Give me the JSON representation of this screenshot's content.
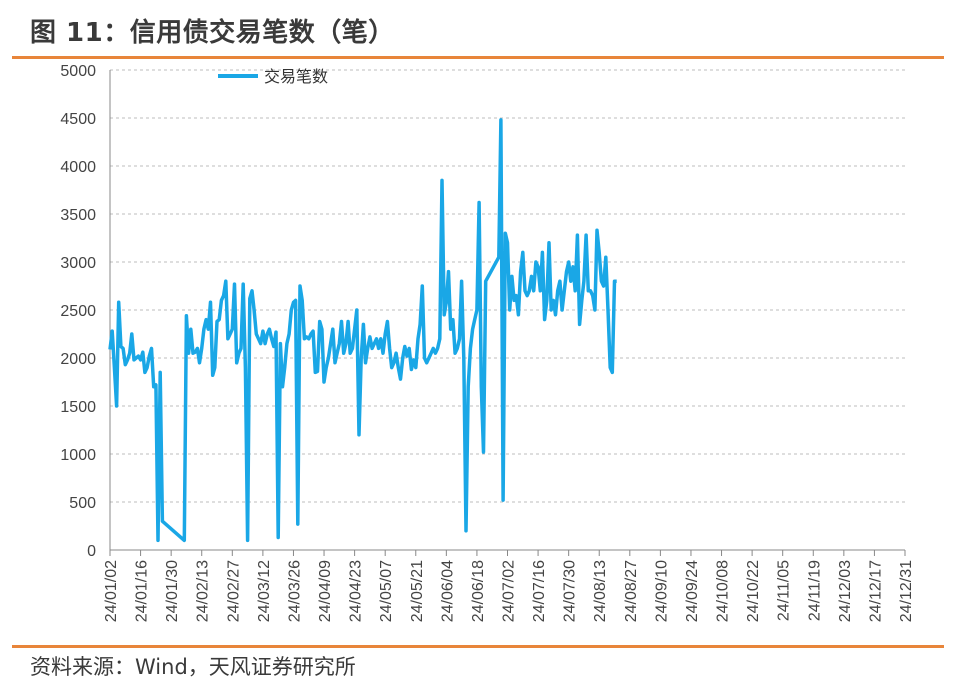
{
  "figure": {
    "title": "图 11：信用债交易笔数（笔）",
    "source": "资料来源：Wind，天风证券研究所"
  },
  "colors": {
    "series": "#1aa7e6",
    "accent_rule": "#e8853a",
    "grid": "#bdbdbd"
  },
  "chart_data": {
    "type": "line",
    "title": "",
    "xlabel": "",
    "ylabel": "",
    "ylim": [
      0,
      5000
    ],
    "yticks": [
      0,
      500,
      1000,
      1500,
      2000,
      2500,
      3000,
      3500,
      4000,
      4500,
      5000
    ],
    "grid": "horizontal dashed",
    "legend": "top-left",
    "categories": [
      "24/01/02",
      "24/01/16",
      "24/01/30",
      "24/02/13",
      "24/02/27",
      "24/03/12",
      "24/03/26",
      "24/04/09",
      "24/04/23",
      "24/05/07",
      "24/05/21",
      "24/06/04",
      "24/06/18",
      "24/07/02",
      "24/07/16",
      "24/07/30",
      "24/08/13",
      "24/08/27",
      "24/09/10",
      "24/09/24",
      "24/10/08",
      "24/10/22",
      "24/11/05",
      "24/11/19",
      "24/12/03",
      "24/12/17",
      "24/12/31"
    ],
    "x_start": "24/01/02",
    "x_end": "24/12/31",
    "series": [
      {
        "name": "交易笔数",
        "points": [
          [
            "24/01/02",
            2090
          ],
          [
            "24/01/03",
            2280
          ],
          [
            "24/01/04",
            1900
          ],
          [
            "24/01/05",
            1500
          ],
          [
            "24/01/06",
            2580
          ],
          [
            "24/01/07",
            2120
          ],
          [
            "24/01/08",
            2100
          ],
          [
            "24/01/09",
            1930
          ],
          [
            "24/01/10",
            1980
          ],
          [
            "24/01/11",
            2050
          ],
          [
            "24/01/12",
            2250
          ],
          [
            "24/01/13",
            1980
          ],
          [
            "24/01/14",
            2000
          ],
          [
            "24/01/15",
            2020
          ],
          [
            "24/01/16",
            1980
          ],
          [
            "24/01/17",
            2060
          ],
          [
            "24/01/18",
            1850
          ],
          [
            "24/01/19",
            1900
          ],
          [
            "24/01/20",
            2020
          ],
          [
            "24/01/21",
            2100
          ],
          [
            "24/01/22",
            1700
          ],
          [
            "24/01/23",
            1720
          ],
          [
            "24/01/24",
            100
          ],
          [
            "24/01/25",
            1850
          ],
          [
            "24/01/26",
            300
          ],
          [
            "24/02/05",
            100
          ],
          [
            "24/02/06",
            2440
          ],
          [
            "24/02/07",
            2050
          ],
          [
            "24/02/08",
            2300
          ],
          [
            "24/02/09",
            2050
          ],
          [
            "24/02/10",
            2060
          ],
          [
            "24/02/11",
            2100
          ],
          [
            "24/02/12",
            1950
          ],
          [
            "24/02/13",
            2100
          ],
          [
            "24/02/14",
            2300
          ],
          [
            "24/02/15",
            2400
          ],
          [
            "24/02/16",
            2300
          ],
          [
            "24/02/17",
            2580
          ],
          [
            "24/02/18",
            1820
          ],
          [
            "24/02/19",
            1900
          ],
          [
            "24/02/20",
            2380
          ],
          [
            "24/02/21",
            2400
          ],
          [
            "24/02/22",
            2600
          ],
          [
            "24/02/23",
            2650
          ],
          [
            "24/02/24",
            2800
          ],
          [
            "24/02/25",
            2200
          ],
          [
            "24/02/26",
            2250
          ],
          [
            "24/02/27",
            2300
          ],
          [
            "24/02/28",
            2770
          ],
          [
            "24/02/29",
            1950
          ],
          [
            "24/03/01",
            2050
          ],
          [
            "24/03/02",
            2100
          ],
          [
            "24/03/03",
            2770
          ],
          [
            "24/03/04",
            1900
          ],
          [
            "24/03/05",
            100
          ],
          [
            "24/03/06",
            2620
          ],
          [
            "24/03/07",
            2700
          ],
          [
            "24/03/08",
            2500
          ],
          [
            "24/03/09",
            2250
          ],
          [
            "24/03/10",
            2200
          ],
          [
            "24/03/11",
            2150
          ],
          [
            "24/03/12",
            2280
          ],
          [
            "24/03/13",
            2150
          ],
          [
            "24/03/14",
            2250
          ],
          [
            "24/03/15",
            2300
          ],
          [
            "24/03/16",
            2200
          ],
          [
            "24/03/17",
            2120
          ],
          [
            "24/03/18",
            2270
          ],
          [
            "24/03/19",
            130
          ],
          [
            "24/03/20",
            2150
          ],
          [
            "24/03/21",
            1700
          ],
          [
            "24/03/22",
            1900
          ],
          [
            "24/03/23",
            2150
          ],
          [
            "24/03/24",
            2250
          ],
          [
            "24/03/25",
            2500
          ],
          [
            "24/03/26",
            2580
          ],
          [
            "24/03/27",
            2600
          ],
          [
            "24/03/28",
            270
          ],
          [
            "24/03/29",
            2750
          ],
          [
            "24/03/30",
            2600
          ],
          [
            "24/03/31",
            2200
          ],
          [
            "24/04/01",
            2220
          ],
          [
            "24/04/02",
            2200
          ],
          [
            "24/04/03",
            2250
          ],
          [
            "24/04/04",
            2280
          ],
          [
            "24/04/05",
            1850
          ],
          [
            "24/04/06",
            1860
          ],
          [
            "24/04/07",
            2380
          ],
          [
            "24/04/08",
            2300
          ],
          [
            "24/04/09",
            1750
          ],
          [
            "24/04/10",
            1900
          ],
          [
            "24/04/11",
            2000
          ],
          [
            "24/04/12",
            2150
          ],
          [
            "24/04/13",
            2300
          ],
          [
            "24/04/14",
            1950
          ],
          [
            "24/04/15",
            2050
          ],
          [
            "24/04/16",
            2150
          ],
          [
            "24/04/17",
            2380
          ],
          [
            "24/04/18",
            2050
          ],
          [
            "24/04/19",
            2150
          ],
          [
            "24/04/20",
            2380
          ],
          [
            "24/04/21",
            2050
          ],
          [
            "24/04/22",
            2100
          ],
          [
            "24/04/23",
            2300
          ],
          [
            "24/04/24",
            2500
          ],
          [
            "24/04/25",
            1200
          ],
          [
            "24/04/26",
            2000
          ],
          [
            "24/04/27",
            2350
          ],
          [
            "24/04/28",
            1950
          ],
          [
            "24/04/29",
            2100
          ],
          [
            "24/04/30",
            2220
          ],
          [
            "24/05/01",
            2100
          ],
          [
            "24/05/02",
            2150
          ],
          [
            "24/05/03",
            2200
          ],
          [
            "24/05/04",
            2100
          ],
          [
            "24/05/05",
            2200
          ],
          [
            "24/05/06",
            2050
          ],
          [
            "24/05/07",
            2250
          ],
          [
            "24/05/08",
            2380
          ],
          [
            "24/05/09",
            2100
          ],
          [
            "24/05/10",
            1900
          ],
          [
            "24/05/11",
            1950
          ],
          [
            "24/05/12",
            2050
          ],
          [
            "24/05/13",
            1900
          ],
          [
            "24/05/14",
            1780
          ],
          [
            "24/05/15",
            2000
          ],
          [
            "24/05/16",
            2120
          ],
          [
            "24/05/17",
            2020
          ],
          [
            "24/05/18",
            2100
          ],
          [
            "24/05/19",
            1880
          ],
          [
            "24/05/20",
            1980
          ],
          [
            "24/05/21",
            1900
          ],
          [
            "24/05/22",
            2200
          ],
          [
            "24/05/23",
            2350
          ],
          [
            "24/05/24",
            2750
          ],
          [
            "24/05/25",
            2000
          ],
          [
            "24/05/26",
            1950
          ],
          [
            "24/05/27",
            2000
          ],
          [
            "24/05/28",
            2050
          ],
          [
            "24/05/29",
            2100
          ],
          [
            "24/05/30",
            2050
          ],
          [
            "24/05/31",
            2100
          ],
          [
            "24/06/01",
            2200
          ],
          [
            "24/06/02",
            3850
          ],
          [
            "24/06/03",
            2450
          ],
          [
            "24/06/04",
            2580
          ],
          [
            "24/06/05",
            2900
          ],
          [
            "24/06/06",
            2300
          ],
          [
            "24/06/07",
            2400
          ],
          [
            "24/06/08",
            2050
          ],
          [
            "24/06/09",
            2100
          ],
          [
            "24/06/10",
            2200
          ],
          [
            "24/06/11",
            2800
          ],
          [
            "24/06/12",
            2000
          ],
          [
            "24/06/13",
            200
          ],
          [
            "24/06/14",
            1700
          ],
          [
            "24/06/15",
            2100
          ],
          [
            "24/06/16",
            2300
          ],
          [
            "24/06/17",
            2400
          ],
          [
            "24/06/18",
            2500
          ],
          [
            "24/06/19",
            3620
          ],
          [
            "24/06/20",
            1700
          ],
          [
            "24/06/21",
            1020
          ],
          [
            "24/06/22",
            2800
          ],
          [
            "24/06/28",
            3050
          ],
          [
            "24/06/29",
            4480
          ],
          [
            "24/06/30",
            520
          ],
          [
            "24/07/01",
            3300
          ],
          [
            "24/07/02",
            3200
          ],
          [
            "24/07/03",
            2500
          ],
          [
            "24/07/04",
            2850
          ],
          [
            "24/07/05",
            2600
          ],
          [
            "24/07/06",
            2650
          ],
          [
            "24/07/07",
            2450
          ],
          [
            "24/07/08",
            2900
          ],
          [
            "24/07/09",
            3100
          ],
          [
            "24/07/10",
            2700
          ],
          [
            "24/07/11",
            2650
          ],
          [
            "24/07/12",
            2700
          ],
          [
            "24/07/13",
            2850
          ],
          [
            "24/07/14",
            2700
          ],
          [
            "24/07/15",
            3000
          ],
          [
            "24/07/16",
            2950
          ],
          [
            "24/07/17",
            2700
          ],
          [
            "24/07/18",
            3100
          ],
          [
            "24/07/19",
            2400
          ],
          [
            "24/07/20",
            2600
          ],
          [
            "24/07/21",
            3200
          ],
          [
            "24/07/22",
            2500
          ],
          [
            "24/07/23",
            2600
          ],
          [
            "24/07/24",
            2450
          ],
          [
            "24/07/25",
            2700
          ],
          [
            "24/07/26",
            2800
          ],
          [
            "24/07/27",
            2500
          ],
          [
            "24/07/28",
            2700
          ],
          [
            "24/07/29",
            2900
          ],
          [
            "24/07/30",
            3000
          ],
          [
            "24/07/31",
            2800
          ],
          [
            "24/08/01",
            2950
          ],
          [
            "24/08/02",
            2700
          ],
          [
            "24/08/03",
            3280
          ],
          [
            "24/08/04",
            2350
          ],
          [
            "24/08/05",
            2600
          ],
          [
            "24/08/06",
            2800
          ],
          [
            "24/08/07",
            3280
          ],
          [
            "24/08/08",
            2700
          ],
          [
            "24/08/09",
            2700
          ],
          [
            "24/08/10",
            2650
          ],
          [
            "24/08/11",
            2500
          ],
          [
            "24/08/12",
            3330
          ],
          [
            "24/08/13",
            3100
          ],
          [
            "24/08/14",
            2800
          ],
          [
            "24/08/15",
            2750
          ],
          [
            "24/08/16",
            3050
          ],
          [
            "24/08/17",
            2500
          ],
          [
            "24/08/18",
            1900
          ],
          [
            "24/08/19",
            1850
          ],
          [
            "24/08/20",
            2800
          ],
          [
            "24/08/21",
            2800
          ]
        ]
      }
    ]
  }
}
